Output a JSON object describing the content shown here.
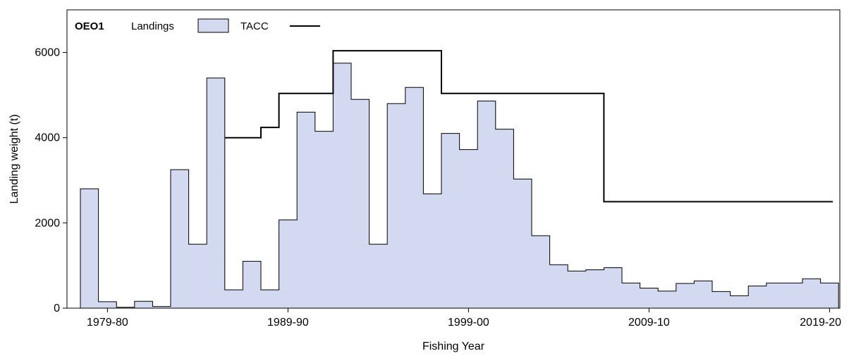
{
  "chart_data": {
    "type": "area",
    "title": "OEO1",
    "xlabel": "Fishing Year",
    "ylabel": "Landing weight (t)",
    "ylim": [
      0,
      7000
    ],
    "yticks": [
      0,
      2000,
      4000,
      6000
    ],
    "xtick_labels": [
      "1979-80",
      "1989-90",
      "1999-00",
      "2009-10",
      "2019-20"
    ],
    "grid": false,
    "legend_position": "top-left",
    "categories": [
      "1978-79",
      "1979-80",
      "1980-81",
      "1981-82",
      "1982-83",
      "1983-84",
      "1984-85",
      "1985-86",
      "1986-87",
      "1987-88",
      "1988-89",
      "1989-90",
      "1990-91",
      "1991-92",
      "1992-93",
      "1993-94",
      "1994-95",
      "1995-96",
      "1996-97",
      "1997-98",
      "1998-99",
      "1999-00",
      "2000-01",
      "2001-02",
      "2002-03",
      "2003-04",
      "2004-05",
      "2005-06",
      "2006-07",
      "2007-08",
      "2008-09",
      "2009-10",
      "2010-11",
      "2011-12",
      "2012-13",
      "2013-14",
      "2014-15",
      "2015-16",
      "2016-17",
      "2017-18",
      "2018-19",
      "2019-20"
    ],
    "series": [
      {
        "name": "Landings",
        "style": "filled-step",
        "color": "#d2d9f1",
        "values": [
          2800,
          150,
          20,
          160,
          40,
          3250,
          1500,
          5400,
          430,
          1100,
          430,
          2070,
          4600,
          4150,
          5750,
          4900,
          1500,
          4800,
          5180,
          2680,
          4100,
          3720,
          4860,
          4200,
          3030,
          1700,
          1020,
          870,
          900,
          950,
          590,
          470,
          400,
          580,
          640,
          390,
          290,
          520,
          590,
          590,
          690,
          590
        ]
      },
      {
        "name": "TACC",
        "style": "step-line",
        "color": "#000000",
        "values": [
          null,
          null,
          null,
          null,
          null,
          null,
          null,
          null,
          4000,
          4000,
          4240,
          5040,
          5040,
          5040,
          6040,
          6040,
          6040,
          6040,
          6040,
          6040,
          5040,
          5040,
          5040,
          5040,
          5040,
          5040,
          5040,
          5040,
          5040,
          2500,
          2500,
          2500,
          2500,
          2500,
          2500,
          2500,
          2500,
          2500,
          2500,
          2500,
          2500,
          2500
        ]
      }
    ]
  }
}
